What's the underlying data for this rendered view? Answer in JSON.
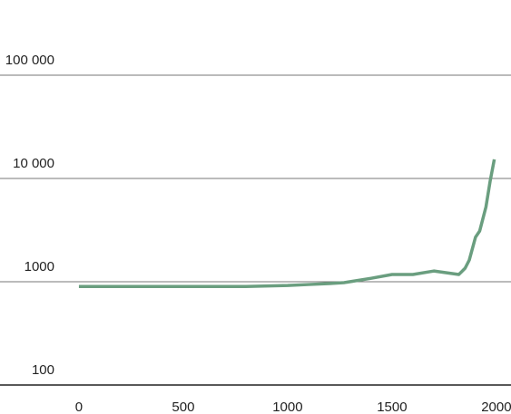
{
  "chart_data": {
    "type": "line",
    "log_y": true,
    "grid": true,
    "x": [
      0,
      500,
      800,
      1000,
      1100,
      1200,
      1270,
      1400,
      1500,
      1600,
      1700,
      1820,
      1850,
      1870,
      1900,
      1920,
      1950,
      1970,
      1990
    ],
    "series": [
      {
        "color": "#6a9e7f",
        "values": [
          900,
          900,
          900,
          920,
          940,
          960,
          980,
          1080,
          1175,
          1175,
          1270,
          1175,
          1350,
          1620,
          2700,
          3100,
          5300,
          9400,
          15300
        ]
      }
    ],
    "xlim": [
      -378,
      2070
    ],
    "xticks": [
      0,
      500,
      1000,
      1500,
      2000
    ],
    "ylim": [
      100,
      100000
    ],
    "yticks": [
      100,
      1000,
      {
        "value": 10000,
        "label": "10 000"
      },
      {
        "value": 100000,
        "label": "100 000"
      }
    ]
  }
}
